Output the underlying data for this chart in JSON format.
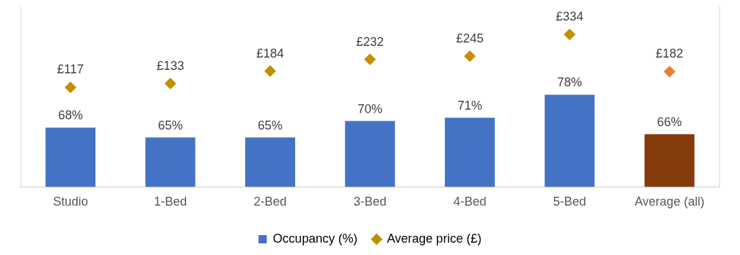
{
  "chart_data": {
    "type": "bar",
    "categories": [
      "Studio",
      "1-Bed",
      "2-Bed",
      "3-Bed",
      "4-Bed",
      "5-Bed",
      "Average (all)"
    ],
    "series": [
      {
        "name": "Occupancy (%)",
        "type": "bar",
        "color": "#4472c4",
        "colors": [
          "#4472c4",
          "#4472c4",
          "#4472c4",
          "#4472c4",
          "#4472c4",
          "#4472c4",
          "#843c0c"
        ],
        "values": [
          68,
          65,
          65,
          70,
          71,
          78,
          66
        ],
        "value_labels": [
          "68%",
          "65%",
          "65%",
          "70%",
          "71%",
          "78%",
          "66%"
        ]
      },
      {
        "name": "Average price (£)",
        "type": "scatter",
        "axis": "y2",
        "x": [
          "Studio",
          "1-Bed",
          "2-Bed",
          "3-Bed",
          "4-Bed",
          "5-Bed",
          "Average (all)"
        ],
        "color": "#c09000",
        "colors": [
          "#c09000",
          "#c09000",
          "#c09000",
          "#c09000",
          "#c09000",
          "#c09000",
          "#ed7d31"
        ],
        "values": [
          117,
          133,
          184,
          232,
          245,
          334,
          182
        ],
        "value_labels": [
          "£117",
          "£133",
          "£184",
          "£232",
          "£245",
          "£334",
          "£182"
        ]
      }
    ],
    "ylim": [
      50,
      105
    ],
    "y2lim": [
      -290,
      450
    ],
    "tick_labels": "x",
    "grid": false,
    "legend": "bottom",
    "marker": "diamond"
  }
}
